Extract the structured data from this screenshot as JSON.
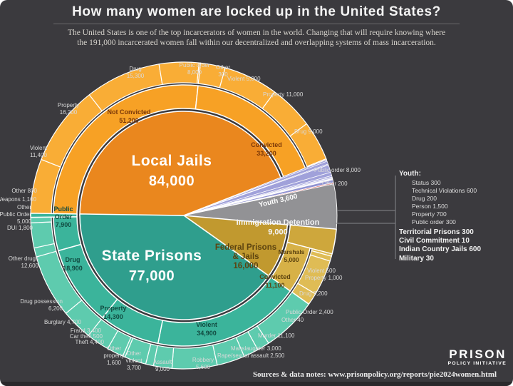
{
  "header": {
    "title": "How many women are locked up in the United States?",
    "subtitle_line1": "The United States is one of the top incarcerators of women in the world. Changing that will require knowing where",
    "subtitle_line2": "the 191,000 incarcerated women fall within our decentralized and overlapping systems of mass incarceration."
  },
  "legend": {
    "youth_header": "Youth:",
    "youth_items": [
      "Status 300",
      "Technical Violations 600",
      "Drug 200",
      "Person 1,500",
      "Property 700",
      "Public order 300"
    ],
    "other_items": [
      "Territorial Prisons 300",
      "Civil Commitment 10",
      "Indian Country Jails 600",
      "Military 30"
    ]
  },
  "footer": {
    "sources": "Sources & data notes: www.prisonpolicy.org/reports/pie2024women.html",
    "brand_line1": "PRISON",
    "brand_line2": "POLICY INITIATIVE"
  },
  "colors": {
    "background": "#3B3A3E",
    "jail_inner": "#EA871E",
    "jail_ring": "#F7A125",
    "jail_child": "#F9AD36",
    "state_inner": "#2F9E8D",
    "state_ring": "#3BB49B",
    "state_child": "#5ECBAE",
    "federal_inner": "#C1992F",
    "marshals": "#CEA73C",
    "federal_ring": "#D7B147",
    "federal_child": "#DFBC55",
    "immigration": "#929295",
    "youth": "#A0A1DA",
    "territorial": "#C5C6EC",
    "civil": "#F4F4FB",
    "indian": "#9193D2",
    "military": "#DB4F4B",
    "separator": "#FFFFFF"
  },
  "chart_data": {
    "type": "pie",
    "title": "How many women are locked up in the United States?",
    "total_label": "191,000 incarcerated women",
    "total_num": 190540,
    "legend_position": "right",
    "segments": [
      {
        "id": "local-jails",
        "name": "Local Jails",
        "value": "84,000",
        "value_num": 84000,
        "color": "#EA871E",
        "lines": [
          "Local Jails",
          "84,000"
        ],
        "groups": [
          {
            "id": "jail-not-convicted",
            "name": "Not Convicted",
            "value": "51,200",
            "value_num": 51200,
            "color": "#F7A125",
            "child_color": "#F9AD36",
            "lines": [
              "Not Convicted",
              "51,200"
            ],
            "children": [
              {
                "id": "violent-nc",
                "name": "Violent",
                "value": "11,400",
                "value_num": 11400,
                "lines": [
                  "Violent",
                  "11,400"
                ]
              },
              {
                "id": "property-nc",
                "name": "Property",
                "value": "16,200",
                "value_num": 16200,
                "lines": [
                  "Property",
                  "16,200"
                ]
              },
              {
                "id": "drug-nc",
                "name": "Drug",
                "value": "15,300",
                "value_num": 15300,
                "lines": [
                  "Drug",
                  "15,300"
                ]
              },
              {
                "id": "publicorder-nc",
                "name": "Public order",
                "value": "8,000",
                "value_num": 8000,
                "lines": [
                  "Public order",
                  "8,000"
                ]
              },
              {
                "id": "other-nc",
                "name": "Other",
                "value": "300",
                "value_num": 300,
                "lines": [
                  "Other",
                  "300"
                ]
              }
            ]
          },
          {
            "id": "jail-convicted",
            "name": "Convicted",
            "value": "33,200",
            "value_num": 33200,
            "color": "#F7A125",
            "child_color": "#F9AD36",
            "lines": [
              "Convicted",
              "33,200"
            ],
            "children": [
              {
                "id": "violent-c",
                "name": "Violent",
                "value": "5,000",
                "value_num": 5000,
                "lines": [
                  "Violent 5,000"
                ]
              },
              {
                "id": "property-c",
                "name": "Property",
                "value": "11,000",
                "value_num": 11000,
                "lines": [
                  "Property 11,000"
                ]
              },
              {
                "id": "drug-c",
                "name": "Drug",
                "value": "9,000",
                "value_num": 9000,
                "lines": [
                  "Drug 9,000"
                ]
              },
              {
                "id": "publicorder-c",
                "name": "Public order",
                "value": "8,000",
                "value_num": 8000,
                "lines": [
                  "Public order 8,000"
                ]
              },
              {
                "id": "other-c",
                "name": "Other",
                "value": "200",
                "value_num": 200,
                "lines": [
                  "Other 200"
                ]
              }
            ]
          }
        ]
      },
      {
        "id": "youth",
        "name": "Youth",
        "value": "3,600",
        "value_num": 3600,
        "color": "#A0A1DA",
        "lines": [
          "Youth 3,600"
        ],
        "children": [
          {
            "id": "y-status",
            "name": "Status",
            "value": "300",
            "value_num": 300
          },
          {
            "id": "y-technical",
            "name": "Technical Violations",
            "value": "600",
            "value_num": 600
          },
          {
            "id": "y-drug",
            "name": "Drug",
            "value": "200",
            "value_num": 200
          },
          {
            "id": "y-person",
            "name": "Person",
            "value": "1,500",
            "value_num": 1500
          },
          {
            "id": "y-property",
            "name": "Property",
            "value": "700",
            "value_num": 700
          },
          {
            "id": "y-publicorder",
            "name": "Public order",
            "value": "300",
            "value_num": 300
          }
        ]
      },
      {
        "id": "territorial",
        "name": "Territorial Prisons",
        "value": "300",
        "value_num": 300,
        "color": "#C5C6EC"
      },
      {
        "id": "civil",
        "name": "Civil Commitment",
        "value": "10",
        "value_num": 10,
        "color": "#F4F4FB"
      },
      {
        "id": "indian",
        "name": "Indian Country Jails",
        "value": "600",
        "value_num": 600,
        "color": "#9193D2"
      },
      {
        "id": "military",
        "name": "Military",
        "value": "30",
        "value_num": 30,
        "color": "#DB4F4B"
      },
      {
        "id": "immigration",
        "name": "Immigration Detention",
        "value": "9,000",
        "value_num": 9000,
        "color": "#929295",
        "lines": [
          "Immigration Detention",
          "9,000"
        ]
      },
      {
        "id": "federal",
        "name": "Federal Prisons & Jails",
        "value": "16,000",
        "value_num": 16000,
        "color": "#C1992F",
        "lines": [
          "Federal Prisons",
          "& Jails",
          "16,000"
        ],
        "groups": [
          {
            "id": "marshals",
            "name": "Marshals",
            "value": "5,000",
            "value_num": 5000,
            "color": "#CEA73C",
            "lines": [
              "Marshals",
              "5,000"
            ]
          },
          {
            "id": "federal-convicted",
            "name": "Convicted",
            "value": "11,100",
            "value_num": 11100,
            "color": "#D7B147",
            "child_color": "#DFBC55",
            "lines": [
              "Convicted",
              "11,100"
            ],
            "children": [
              {
                "id": "violent-f",
                "name": "Violent",
                "value": "500",
                "value_num": 500,
                "lines": [
                  "Violent 500"
                ]
              },
              {
                "id": "property-f",
                "name": "Property",
                "value": "1,000",
                "value_num": 1000,
                "lines": [
                  "Property 1,000"
                ]
              },
              {
                "id": "drug-f",
                "name": "Drug",
                "value": "7,200",
                "value_num": 7200,
                "lines": [
                  "Drug 7,200"
                ]
              },
              {
                "id": "publicorder-f",
                "name": "Public Order",
                "value": "2,400",
                "value_num": 2400,
                "lines": [
                  "Public Order 2,400"
                ]
              },
              {
                "id": "other-f",
                "name": "Other",
                "value": "40",
                "value_num": 40,
                "lines": [
                  "Other 40"
                ]
              }
            ]
          }
        ]
      },
      {
        "id": "state-prisons",
        "name": "State Prisons",
        "value": "77,000",
        "value_num": 77000,
        "color": "#2F9E8D",
        "lines": [
          "State Prisons",
          "77,000"
        ],
        "groups": [
          {
            "id": "state-violent",
            "name": "Violent",
            "value": "34,900",
            "value_num": 34900,
            "color": "#3BB49B",
            "child_color": "#5ECBAE",
            "lines": [
              "Violent",
              "34,900"
            ],
            "children": [
              {
                "id": "murder",
                "name": "Murder",
                "value": "11,100",
                "value_num": 11100,
                "lines": [
                  "Murder 11,100"
                ]
              },
              {
                "id": "rape",
                "name": "Rape/sexual assault",
                "value": "2,500",
                "value_num": 2500,
                "lines": [
                  "Rape/sexual assault 2,500"
                ]
              },
              {
                "id": "manslaughter",
                "name": "Manslaughter",
                "value": "3,000",
                "value_num": 3000,
                "lines": [
                  "Manslaughter 3,000"
                ]
              },
              {
                "id": "robbery",
                "name": "Robbery",
                "value": "5,600",
                "value_num": 5600,
                "lines": [
                  "Robbery",
                  "5,600"
                ]
              },
              {
                "id": "assault",
                "name": "Assault",
                "value": "9,000",
                "value_num": 9000,
                "lines": [
                  "Assault",
                  "9,000"
                ]
              },
              {
                "id": "other-violent-s",
                "name": "Other violent",
                "value": "3,700",
                "value_num": 3700,
                "lines": [
                  "Other",
                  "violent",
                  "3,700"
                ]
              }
            ]
          },
          {
            "id": "state-property",
            "name": "Property",
            "value": "14,300",
            "value_num": 14300,
            "color": "#3BB49B",
            "child_color": "#5ECBAE",
            "lines": [
              "Property",
              "14,300"
            ],
            "children": [
              {
                "id": "other-property-s",
                "name": "Other property",
                "value": "1,600",
                "value_num": 1600,
                "lines": [
                  "Other",
                  "property",
                  "1,600"
                ]
              },
              {
                "id": "theft",
                "name": "Theft",
                "value": "4,400",
                "value_num": 4400,
                "lines": [
                  "Theft 4,400"
                ]
              },
              {
                "id": "car-theft",
                "name": "Car theft",
                "value": "500",
                "value_num": 500,
                "lines": [
                  "Car theft 500"
                ]
              },
              {
                "id": "fraud",
                "name": "Fraud",
                "value": "3,400",
                "value_num": 3400,
                "lines": [
                  "Fraud 3,400"
                ]
              },
              {
                "id": "burglary",
                "name": "Burglary",
                "value": "4,700",
                "value_num": 4700,
                "lines": [
                  "Burglary 4,700"
                ]
              }
            ]
          },
          {
            "id": "state-drug",
            "name": "Drug",
            "value": "18,900",
            "value_num": 18900,
            "color": "#3BB49B",
            "child_color": "#5ECBAE",
            "lines": [
              "Drug",
              "18,900"
            ],
            "children": [
              {
                "id": "drug-possession",
                "name": "Drug possession",
                "value": "6,200",
                "value_num": 6200,
                "lines": [
                  "Drug possession",
                  "6,200"
                ]
              },
              {
                "id": "other-drugs",
                "name": "Other drugs",
                "value": "12,600",
                "value_num": 12600,
                "lines": [
                  "Other drugs",
                  "12,600"
                ]
              }
            ]
          },
          {
            "id": "state-po",
            "name": "Public Order",
            "value": "7,900",
            "value_num": 7900,
            "color": "#3BB49B",
            "child_color": "#5ECBAE",
            "lines": [
              "Public",
              "Order",
              "7,900"
            ],
            "children": [
              {
                "id": "dui",
                "name": "DUI",
                "value": "1,800",
                "value_num": 1800,
                "lines": [
                  "DUI 1,800"
                ]
              },
              {
                "id": "other-po-s",
                "name": "Other Public Order",
                "value": "5,000",
                "value_num": 5000,
                "lines": [
                  "Other",
                  "Public Order",
                  "5,000"
                ]
              },
              {
                "id": "weapons",
                "name": "Weapons",
                "value": "1,100",
                "value_num": 1100,
                "lines": [
                  "Weapons 1,100"
                ]
              }
            ]
          },
          {
            "id": "other-state",
            "name": "Other",
            "value": "800",
            "value_num": 800,
            "color": "#3BB49B",
            "lines": [
              "Other 800"
            ]
          }
        ]
      }
    ]
  }
}
